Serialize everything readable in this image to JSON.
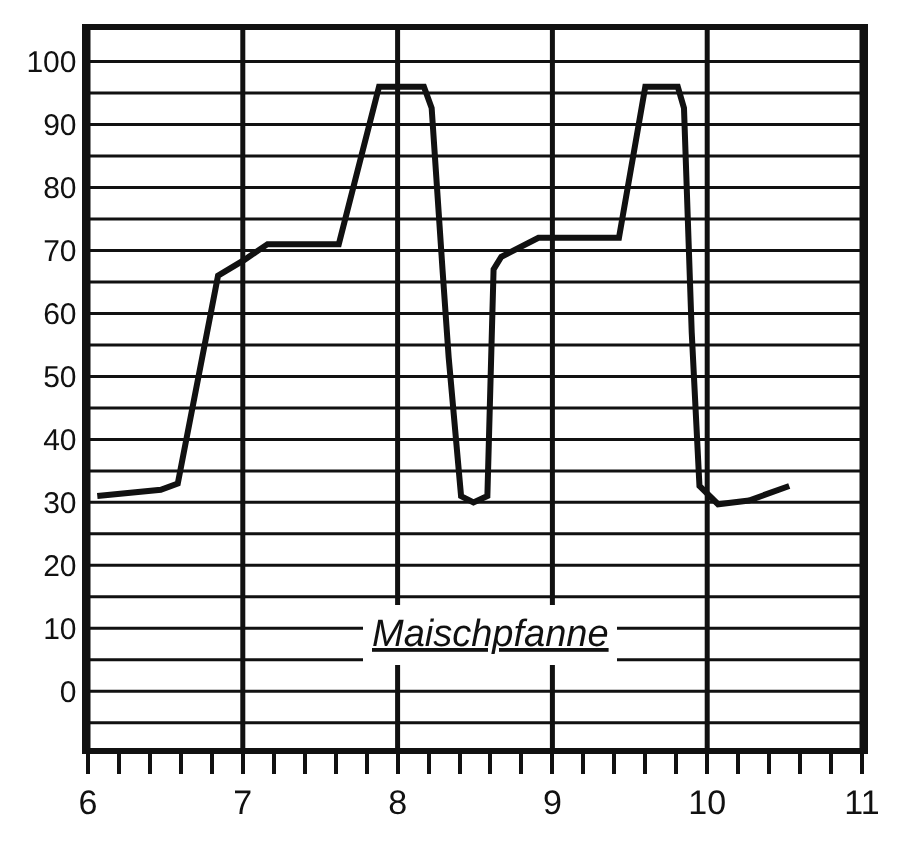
{
  "chart_data": {
    "type": "line",
    "x": [
      6.06,
      6.47,
      6.58,
      6.84,
      7.01,
      7.16,
      7.62,
      7.88,
      8.17,
      8.22,
      8.29,
      8.33,
      8.41,
      8.49,
      8.58,
      8.62,
      8.67,
      8.91,
      9.43,
      9.6,
      9.81,
      9.85,
      9.9,
      9.95,
      10.07,
      10.27,
      10.53
    ],
    "values": [
      31,
      32,
      33,
      66,
      68.5,
      71,
      71,
      96,
      96,
      92.6,
      67,
      53,
      31,
      30,
      31,
      67,
      69,
      72,
      72,
      96,
      96,
      92.6,
      57,
      32.6,
      29.7,
      30.3,
      32.6
    ],
    "color": "#111111",
    "marker": "none",
    "line_style": "solid",
    "annotations": [
      "Maischpfanne"
    ],
    "xlim": [
      6,
      11
    ],
    "ylim": [
      -9,
      105
    ],
    "xticks": [
      6,
      {
        "value": 6.2,
        "label": null
      },
      {
        "value": 6.4,
        "label": null
      },
      {
        "value": 6.6,
        "label": null
      },
      {
        "value": 6.8,
        "label": null
      },
      7,
      {
        "value": 7.2,
        "label": null
      },
      {
        "value": 7.4,
        "label": null
      },
      {
        "value": 7.6,
        "label": null
      },
      {
        "value": 7.8,
        "label": null
      },
      8,
      {
        "value": 8.2,
        "label": null
      },
      {
        "value": 8.4,
        "label": null
      },
      {
        "value": 8.6,
        "label": null
      },
      {
        "value": 8.8,
        "label": null
      },
      9,
      {
        "value": 9.2,
        "label": null
      },
      {
        "value": 9.4,
        "label": null
      },
      {
        "value": 9.6,
        "label": null
      },
      {
        "value": 9.8,
        "label": null
      },
      10,
      {
        "value": 10.2,
        "label": null
      },
      {
        "value": 10.4,
        "label": null
      },
      {
        "value": 10.6,
        "label": null
      },
      {
        "value": 10.8,
        "label": null
      },
      11
    ],
    "yticks": [
      {
        "value": -5,
        "label": null
      },
      0,
      {
        "value": 5,
        "label": null
      },
      10,
      {
        "value": 15,
        "label": null
      },
      20,
      {
        "value": 25,
        "label": null
      },
      30,
      {
        "value": 35,
        "label": null
      },
      40,
      {
        "value": 45,
        "label": null
      },
      50,
      {
        "value": 55,
        "label": null
      },
      60,
      {
        "value": 65,
        "label": null
      },
      70,
      {
        "value": 75,
        "label": null
      },
      80,
      {
        "value": 85,
        "label": null
      },
      90,
      {
        "value": 95,
        "label": null
      },
      100
    ],
    "grid": true
  }
}
